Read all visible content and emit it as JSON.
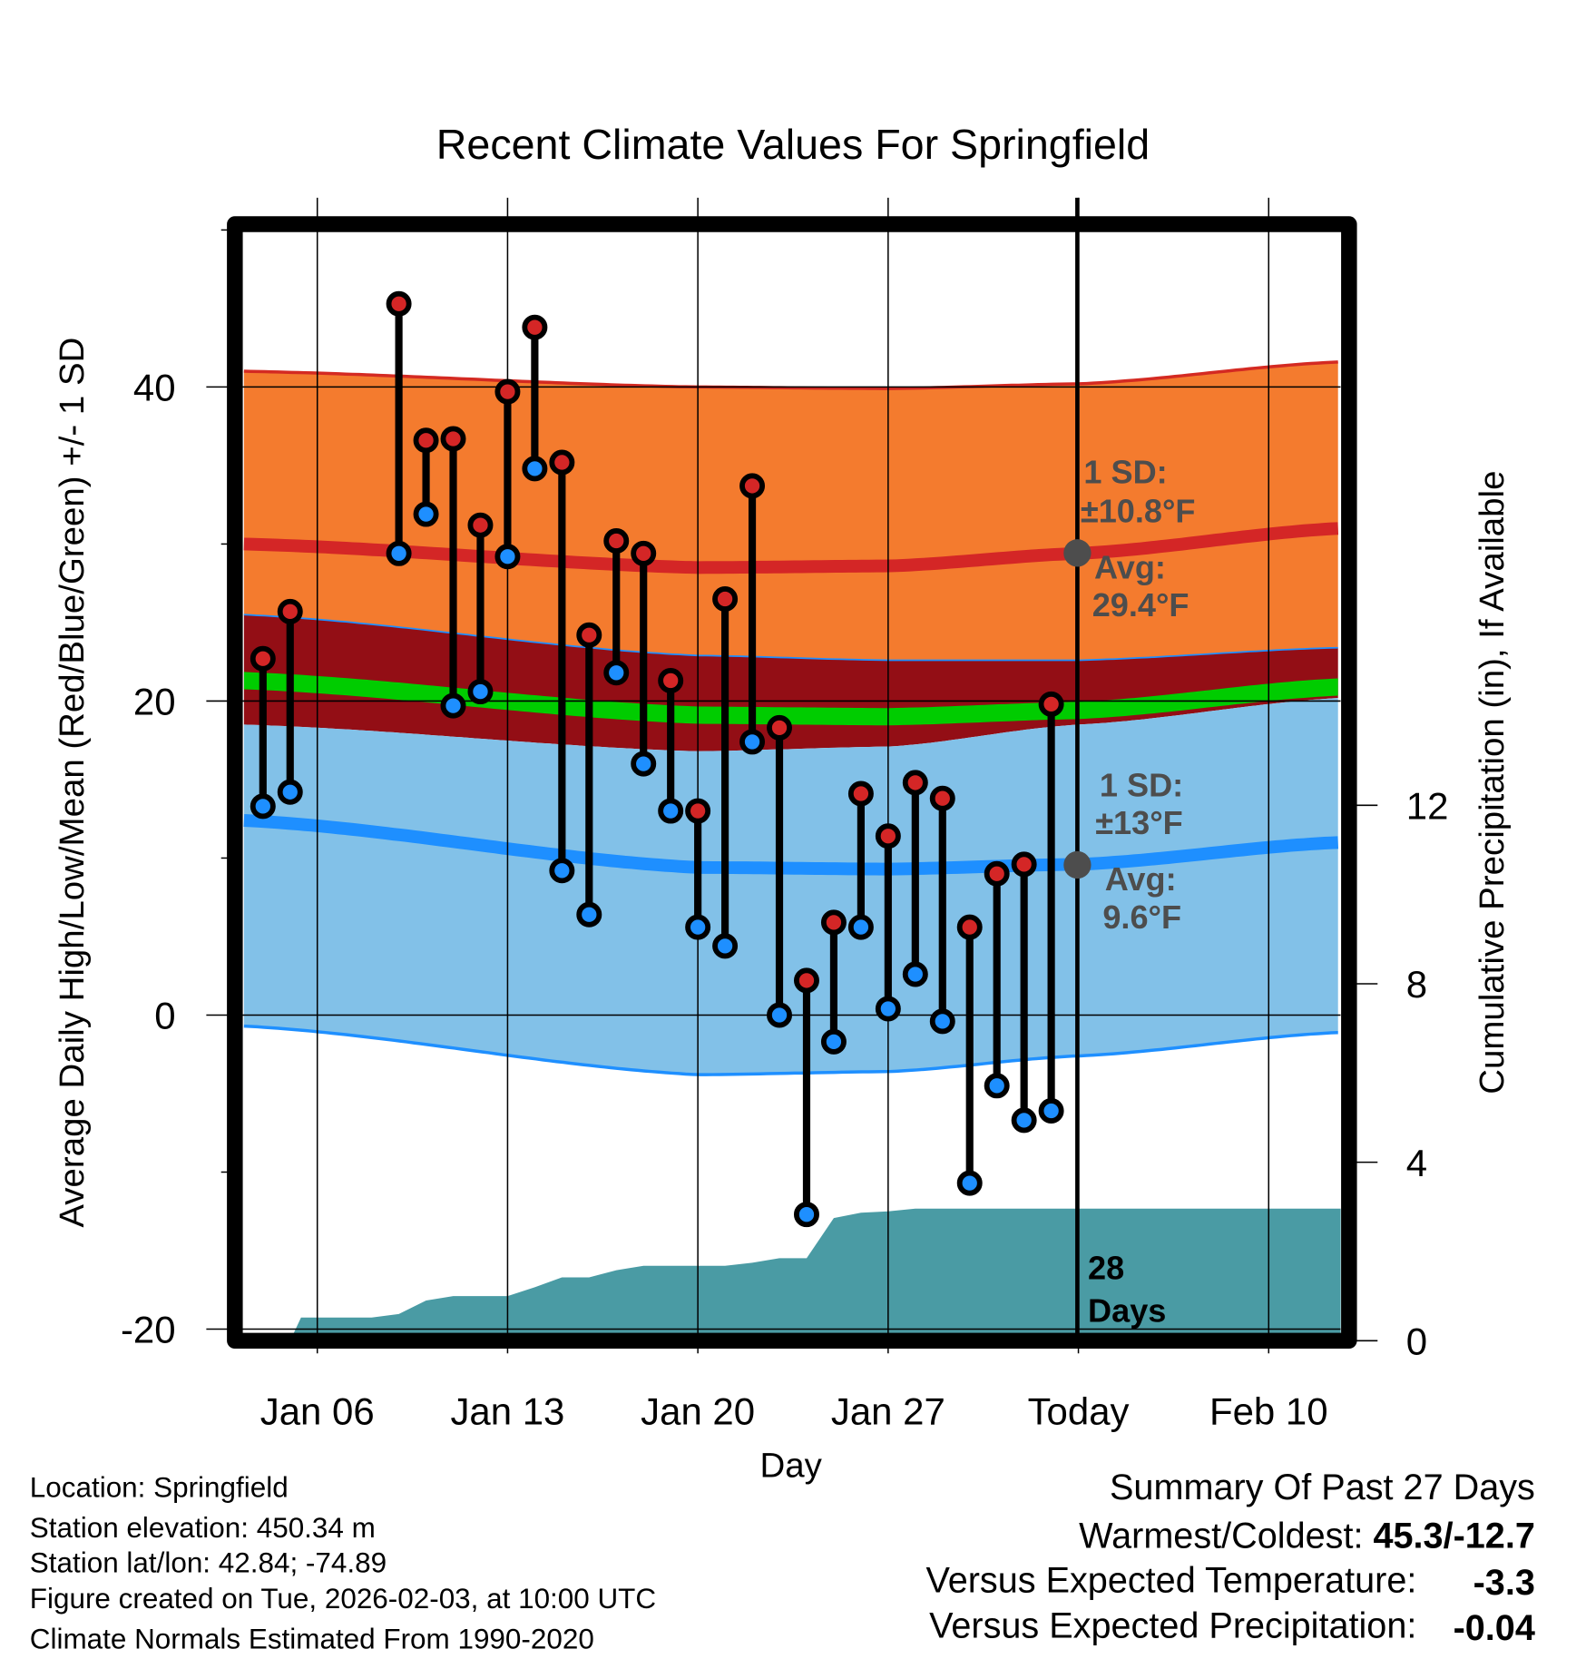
{
  "title": "Recent Climate Values For Springfield",
  "colors": {
    "high_band": "#F47B2E",
    "high_band_edge": "#D42A22",
    "avg_high_line": "#D42626",
    "mid_band": "#930E15",
    "mean_band": "#00CC00",
    "low_band": "#82C1E8",
    "low_band_edge": "#1E8FFF",
    "avg_low_line": "#1E8FFF",
    "high_dot": "#D42626",
    "low_dot": "#1E8FFF",
    "precip": "#4A9BA4",
    "annotation": "#4d4d4d",
    "temp_anomaly": "#1E8FFF",
    "precip_anomaly": "#A0522D"
  },
  "chart_data": {
    "type": "line",
    "title": "Recent Climate Values For Springfield",
    "xlabel": "Day",
    "ylabel": "Average Daily High/Low/Mean (Red/Blue/Green) +/- 1 SD",
    "y2label": "Cumulative Precipitation (in), If Available",
    "x_unit": "day of January (Jan 1 = 1; Feb 3 = 34)",
    "xlim": [
      3.3,
      43.65
    ],
    "ylim": [
      -20,
      50
    ],
    "y2lim": [
      0,
      16.6
    ],
    "x_ticks": [
      {
        "day": 6,
        "label": "Jan 06"
      },
      {
        "day": 13,
        "label": "Jan 13"
      },
      {
        "day": 20,
        "label": "Jan 20"
      },
      {
        "day": 27,
        "label": "Jan 27"
      },
      {
        "day": 34,
        "label": "Today"
      },
      {
        "day": 41,
        "label": "Feb 10"
      }
    ],
    "y_ticks": [
      {
        "value": -20,
        "label": "-20"
      },
      {
        "value": 0,
        "label": "0"
      },
      {
        "value": 20,
        "label": "20"
      },
      {
        "value": 40,
        "label": "40"
      }
    ],
    "y_minor_ticks": [
      -10,
      10,
      30,
      50
    ],
    "y2_ticks": [
      {
        "value": 0,
        "label": "0"
      },
      {
        "value": 4,
        "label": "4"
      },
      {
        "value": 8,
        "label": "8"
      },
      {
        "value": 12,
        "label": "12"
      }
    ],
    "grid": true,
    "today_day": 34,
    "normals": {
      "days": [
        3.3,
        20,
        27,
        34,
        43.65
      ],
      "high_plus_sd": [
        41.0,
        40.0,
        39.9,
        40.2,
        41.6
      ],
      "avg_high": [
        30.0,
        28.5,
        28.6,
        29.4,
        31.0
      ],
      "high_minus_sd": [
        25.5,
        22.9,
        22.6,
        22.6,
        23.4
      ],
      "avg_mean": [
        21.3,
        19.1,
        19.0,
        19.4,
        20.9
      ],
      "low_plus_sd": [
        18.5,
        16.8,
        17.1,
        18.5,
        20.2
      ],
      "avg_low": [
        12.4,
        9.4,
        9.3,
        9.6,
        11.0
      ],
      "low_minus_sd": [
        -0.7,
        -3.8,
        -3.6,
        -2.6,
        -1.1
      ]
    },
    "observations": {
      "days": [
        4,
        5,
        9,
        10,
        11,
        12,
        13,
        14,
        15,
        16,
        17,
        18,
        19,
        20,
        21,
        22,
        23,
        24,
        25,
        26,
        27,
        28,
        29,
        30,
        31,
        32,
        33
      ],
      "highs": [
        22.7,
        25.7,
        45.3,
        36.6,
        36.7,
        31.2,
        39.7,
        43.8,
        35.2,
        24.2,
        30.2,
        29.4,
        21.3,
        13.0,
        26.5,
        33.7,
        18.3,
        2.2,
        5.9,
        14.1,
        11.4,
        14.8,
        13.8,
        5.6,
        9.0,
        9.6,
        19.8
      ],
      "lows": [
        13.3,
        14.2,
        29.4,
        31.9,
        19.7,
        20.6,
        29.2,
        34.8,
        9.2,
        6.4,
        21.8,
        16.0,
        13.0,
        5.6,
        4.4,
        17.4,
        0.0,
        -12.7,
        -1.7,
        5.6,
        0.4,
        2.6,
        -0.4,
        -10.7,
        -4.5,
        -6.7,
        -6.1
      ]
    },
    "precipitation": {
      "days": [
        3.3,
        4,
        5,
        5.4,
        6,
        8,
        9,
        10,
        11,
        13,
        14,
        15,
        16,
        17,
        18,
        21,
        22,
        23,
        24,
        25,
        26,
        27,
        28,
        43.65
      ],
      "cumulative_in": [
        0,
        0,
        0,
        0.52,
        0.52,
        0.52,
        0.6,
        0.9,
        1.0,
        1.0,
        1.2,
        1.42,
        1.42,
        1.58,
        1.68,
        1.68,
        1.75,
        1.85,
        1.85,
        2.75,
        2.87,
        2.9,
        2.96,
        2.96
      ]
    },
    "annotations": {
      "high_sd_label": "1 SD:",
      "high_sd_value": "±10.8°F",
      "high_avg_label": "Avg:",
      "high_avg_value": "29.4°F",
      "low_sd_label": "1 SD:",
      "low_sd_value": "±13°F",
      "low_avg_label": "Avg:",
      "low_avg_value": "9.6°F",
      "days_count": "28",
      "days_word": "Days"
    }
  },
  "footer": {
    "location": "Location: Springfield",
    "elevation": "Station elevation: 450.34 m",
    "latlon": "Station lat/lon: 42.84; -74.89",
    "created": "Figure created on Tue, 2026-02-03, at 10:00 UTC",
    "normals": "Climate Normals Estimated From 1990-2020"
  },
  "summary": {
    "title": "Summary Of Past 27 Days",
    "warm_cold_label": "Warmest/Coldest: ",
    "warm_cold_value": "45.3/-12.7",
    "temp_label": "Versus Expected Temperature:",
    "temp_value": "-3.3",
    "precip_label": "Versus Expected Precipitation:",
    "precip_value": "-0.04"
  }
}
